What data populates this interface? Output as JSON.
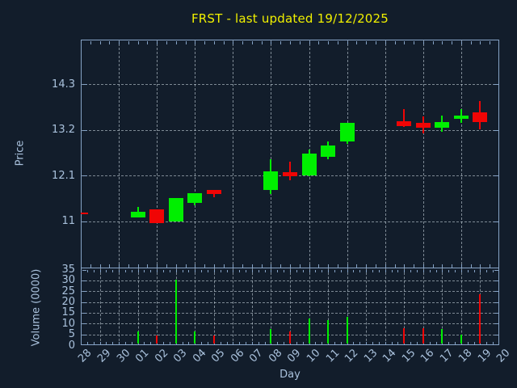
{
  "title": "FRST - last updated 19/12/2025",
  "colors": {
    "background": "#121d2b",
    "title": "#f0f000",
    "spine": "#86a3c6",
    "tick_label": "#a9c1dc",
    "grid": "#8a949e",
    "up": "#00ef00",
    "down": "#f00505"
  },
  "chart_data": {
    "type": "candlestick_with_volume_bars",
    "title": "FRST - last updated 19/12/2025",
    "xlabel": "Day",
    "legend": "none",
    "grid": "dashed, on",
    "panels": [
      {
        "name": "price",
        "ylabel": "Price",
        "ytick_labels": [
          "11",
          "12.1",
          "13.2",
          "14.3"
        ],
        "ytick_values": [
          11,
          12.1,
          13.2,
          14.3
        ],
        "ylim": [
          9.87,
          15.37
        ]
      },
      {
        "name": "volume",
        "ylabel": "Volume (0000)",
        "ytick_labels": [
          "0",
          "5",
          "10",
          "15",
          "20",
          "25",
          "30",
          "35"
        ],
        "ytick_values": [
          0,
          5,
          10,
          15,
          20,
          25,
          30,
          35
        ],
        "ylim": [
          0,
          35.6
        ]
      }
    ],
    "x_categories": [
      "28",
      "29",
      "30",
      "01",
      "02",
      "03",
      "04",
      "05",
      "06",
      "07",
      "08",
      "09",
      "10",
      "11",
      "12",
      "13",
      "14",
      "15",
      "16",
      "17",
      "18",
      "19",
      "20"
    ],
    "no_data_days": [
      "29",
      "30",
      "06",
      "07",
      "13",
      "14",
      "20"
    ],
    "candles": [
      {
        "day": "28",
        "open": 11.22,
        "high": 11.22,
        "low": 11.18,
        "close": 11.18,
        "volume": 0,
        "direction": "down"
      },
      {
        "day": "01",
        "open": 11.1,
        "high": 11.34,
        "low": 11.1,
        "close": 11.23,
        "volume": 6.3,
        "direction": "up"
      },
      {
        "day": "02",
        "open": 11.29,
        "high": 11.29,
        "low": 10.95,
        "close": 10.95,
        "volume": 4.5,
        "direction": "down"
      },
      {
        "day": "03",
        "open": 10.99,
        "high": 11.56,
        "low": 10.99,
        "close": 11.56,
        "volume": 30.2,
        "direction": "up"
      },
      {
        "day": "04",
        "open": 11.45,
        "high": 11.67,
        "low": 11.39,
        "close": 11.67,
        "volume": 6.3,
        "direction": "up"
      },
      {
        "day": "05",
        "open": 11.76,
        "high": 11.76,
        "low": 11.58,
        "close": 11.65,
        "volume": 4.5,
        "direction": "down"
      },
      {
        "day": "08",
        "open": 11.75,
        "high": 12.5,
        "low": 11.66,
        "close": 12.21,
        "volume": 7.5,
        "direction": "up"
      },
      {
        "day": "09",
        "open": 12.18,
        "high": 12.44,
        "low": 11.98,
        "close": 12.08,
        "volume": 6.2,
        "direction": "down"
      },
      {
        "day": "10",
        "open": 12.11,
        "high": 12.73,
        "low": 12.08,
        "close": 12.63,
        "volume": 12.4,
        "direction": "up"
      },
      {
        "day": "11",
        "open": 12.55,
        "high": 12.92,
        "low": 12.5,
        "close": 12.83,
        "volume": 11.8,
        "direction": "up"
      },
      {
        "day": "12",
        "open": 12.92,
        "high": 13.37,
        "low": 12.86,
        "close": 13.36,
        "volume": 13.2,
        "direction": "up"
      },
      {
        "day": "15",
        "open": 13.41,
        "high": 13.69,
        "low": 13.28,
        "close": 13.29,
        "volume": 8.0,
        "direction": "down"
      },
      {
        "day": "16",
        "open": 13.36,
        "high": 13.52,
        "low": 13.12,
        "close": 13.26,
        "volume": 7.7,
        "direction": "down"
      },
      {
        "day": "17",
        "open": 13.25,
        "high": 13.54,
        "low": 13.15,
        "close": 13.38,
        "volume": 7.6,
        "direction": "up"
      },
      {
        "day": "18",
        "open": 13.46,
        "high": 13.69,
        "low": 13.36,
        "close": 13.54,
        "volume": 5.0,
        "direction": "up"
      },
      {
        "day": "19",
        "open": 13.63,
        "high": 13.9,
        "low": 13.21,
        "close": 13.39,
        "volume": 23.5,
        "direction": "down"
      }
    ]
  }
}
